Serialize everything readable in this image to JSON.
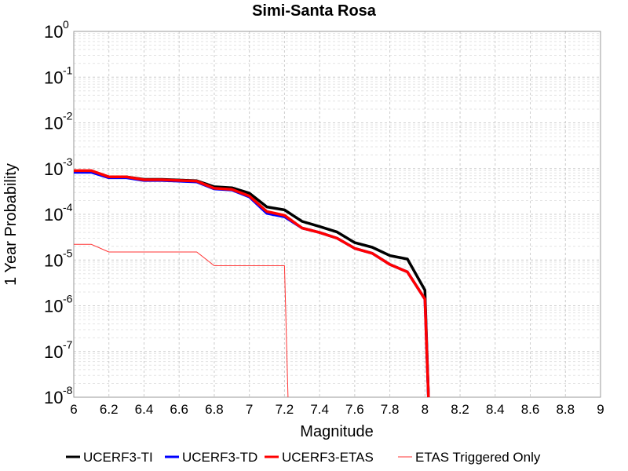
{
  "chart_data": {
    "type": "line",
    "title": "Simi-Santa Rosa",
    "xlabel": "Magnitude",
    "ylabel": "1 Year Probability",
    "xlim": [
      6,
      9
    ],
    "ylim": [
      1e-08,
      1
    ],
    "yscale": "log",
    "grid": true,
    "legend_position": "bottom",
    "x_ticks": [
      "6",
      "6.2",
      "6.4",
      "6.6",
      "6.8",
      "7",
      "7.2",
      "7.4",
      "7.6",
      "7.8",
      "8",
      "8.2",
      "8.4",
      "8.6",
      "8.8",
      "9"
    ],
    "y_ticks": [
      {
        "base": "10",
        "exp": "-8",
        "value": 1e-08
      },
      {
        "base": "10",
        "exp": "-7",
        "value": 1e-07
      },
      {
        "base": "10",
        "exp": "-6",
        "value": 1e-06
      },
      {
        "base": "10",
        "exp": "-5",
        "value": 1e-05
      },
      {
        "base": "10",
        "exp": "-4",
        "value": 0.0001
      },
      {
        "base": "10",
        "exp": "-3",
        "value": 0.001
      },
      {
        "base": "10",
        "exp": "-2",
        "value": 0.01
      },
      {
        "base": "10",
        "exp": "-1",
        "value": 0.1
      },
      {
        "base": "10",
        "exp": "0",
        "value": 1
      }
    ],
    "series": [
      {
        "name": "UCERF3-TI",
        "color": "#000000",
        "x": [
          6.0,
          6.1,
          6.2,
          6.3,
          6.4,
          6.5,
          6.6,
          6.7,
          6.8,
          6.9,
          7.0,
          7.1,
          7.2,
          7.3,
          7.4,
          7.5,
          7.6,
          7.7,
          7.8,
          7.9,
          8.0,
          8.02
        ],
        "y": [
          0.00088,
          0.00088,
          0.00066,
          0.00066,
          0.00058,
          0.00058,
          0.00056,
          0.00054,
          0.0004,
          0.00038,
          0.00029,
          0.000145,
          0.000125,
          7e-05,
          5.4e-05,
          4.1e-05,
          2.4e-05,
          1.9e-05,
          1.25e-05,
          1.05e-05,
          2.2e-06,
          1e-08
        ]
      },
      {
        "name": "UCERF3-TD",
        "color": "#0000ff",
        "x": [
          6.0,
          6.1,
          6.2,
          6.3,
          6.4,
          6.5,
          6.6,
          6.7,
          6.8,
          6.9,
          7.0,
          7.1,
          7.2,
          7.3,
          7.4,
          7.5,
          7.6,
          7.7,
          7.8,
          7.9,
          8.0,
          8.02
        ],
        "y": [
          0.00083,
          0.00083,
          0.00063,
          0.00063,
          0.00055,
          0.00055,
          0.00053,
          0.00051,
          0.00036,
          0.00034,
          0.00024,
          0.000105,
          8.8e-05,
          5e-05,
          4e-05,
          3e-05,
          1.8e-05,
          1.4e-05,
          8e-06,
          5.5e-06,
          1.4e-06,
          1e-08
        ]
      },
      {
        "name": "UCERF3-ETAS",
        "color": "#ff0000",
        "x": [
          6.0,
          6.1,
          6.2,
          6.3,
          6.4,
          6.5,
          6.6,
          6.7,
          6.8,
          6.9,
          7.0,
          7.1,
          7.2,
          7.3,
          7.4,
          7.5,
          7.6,
          7.7,
          7.8,
          7.9,
          8.0,
          8.02
        ],
        "y": [
          0.0009,
          0.0009,
          0.00066,
          0.00066,
          0.00057,
          0.00057,
          0.00055,
          0.00053,
          0.00037,
          0.00035,
          0.00025,
          0.000115,
          9.5e-05,
          5e-05,
          4e-05,
          3e-05,
          1.8e-05,
          1.4e-05,
          8e-06,
          5.5e-06,
          1.4e-06,
          1e-08
        ]
      },
      {
        "name": "ETAS Triggered Only",
        "color": "#ff3333",
        "x": [
          6.0,
          6.1,
          6.2,
          6.3,
          6.4,
          6.5,
          6.6,
          6.7,
          6.8,
          6.9,
          7.0,
          7.1,
          7.2,
          7.22
        ],
        "y": [
          2.2e-05,
          2.2e-05,
          1.5e-05,
          1.5e-05,
          1.5e-05,
          1.5e-05,
          1.5e-05,
          1.5e-05,
          7.5e-06,
          7.5e-06,
          7.5e-06,
          7.5e-06,
          7.5e-06,
          1e-08
        ]
      }
    ]
  }
}
